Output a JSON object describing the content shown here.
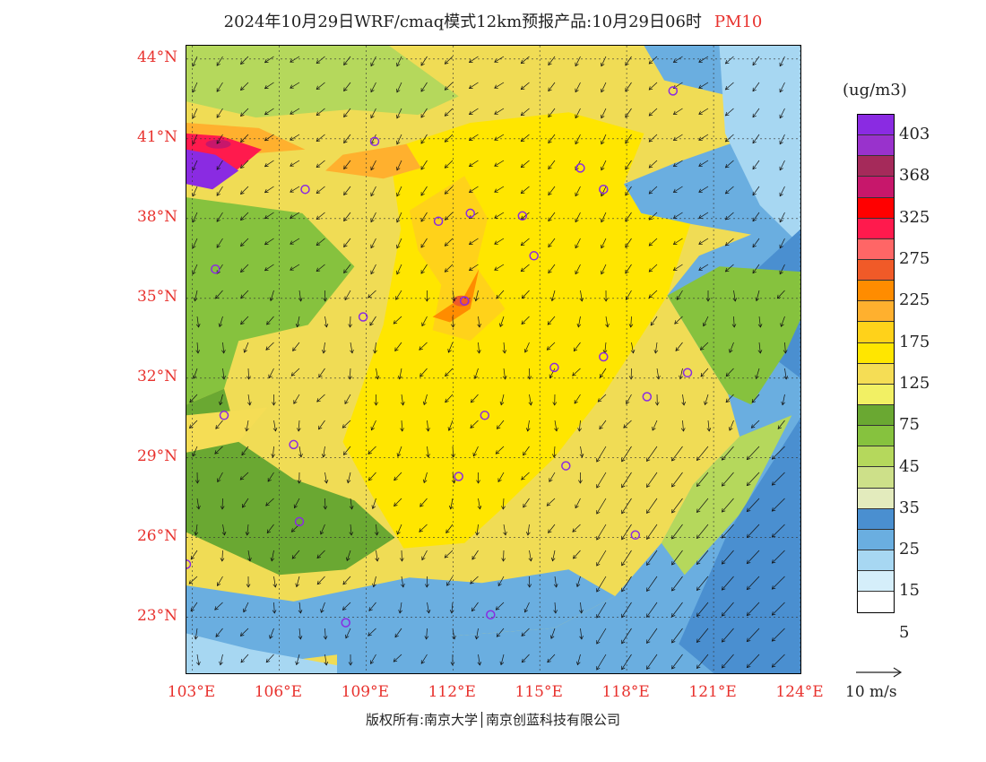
{
  "header": {
    "title": "2024年10月29日WRF/cmaq模式12km预报产品:10月29日06时",
    "pollutant": "PM10"
  },
  "map": {
    "lat_labels": [
      "44°N",
      "41°N",
      "38°N",
      "35°N",
      "32°N",
      "29°N",
      "26°N",
      "23°N"
    ],
    "lon_labels": [
      "103°E",
      "106°E",
      "109°E",
      "112°E",
      "115°E",
      "118°E",
      "121°E",
      "124°E"
    ],
    "lat_values": [
      44,
      41,
      38,
      35,
      32,
      29,
      26,
      23
    ],
    "lon_values": [
      103,
      106,
      109,
      112,
      115,
      118,
      121,
      124
    ],
    "lat_range": [
      20.9,
      44.5
    ],
    "lon_range": [
      102.8,
      124
    ],
    "cities": [
      {
        "lon": 109.3,
        "lat": 40.9
      },
      {
        "lon": 106.9,
        "lat": 39.1
      },
      {
        "lon": 111.5,
        "lat": 37.9
      },
      {
        "lon": 112.6,
        "lat": 38.2
      },
      {
        "lon": 114.4,
        "lat": 38.1
      },
      {
        "lon": 116.4,
        "lat": 39.9
      },
      {
        "lon": 117.2,
        "lat": 39.1
      },
      {
        "lon": 119.6,
        "lat": 42.8
      },
      {
        "lon": 103.8,
        "lat": 36.1
      },
      {
        "lon": 108.9,
        "lat": 34.3
      },
      {
        "lon": 112.4,
        "lat": 34.9
      },
      {
        "lon": 114.8,
        "lat": 36.6
      },
      {
        "lon": 117.2,
        "lat": 32.8
      },
      {
        "lon": 115.5,
        "lat": 32.4
      },
      {
        "lon": 118.7,
        "lat": 31.3
      },
      {
        "lon": 120.1,
        "lat": 32.2
      },
      {
        "lon": 104.1,
        "lat": 30.6
      },
      {
        "lon": 106.5,
        "lat": 29.5
      },
      {
        "lon": 113.1,
        "lat": 30.6
      },
      {
        "lon": 112.2,
        "lat": 28.3
      },
      {
        "lon": 115.9,
        "lat": 28.7
      },
      {
        "lon": 106.7,
        "lat": 26.6
      },
      {
        "lon": 118.3,
        "lat": 26.1
      },
      {
        "lon": 102.8,
        "lat": 25.0
      },
      {
        "lon": 108.3,
        "lat": 22.8
      },
      {
        "lon": 113.3,
        "lat": 23.1
      }
    ]
  },
  "legend": {
    "units": "(ug/m3)",
    "colors": [
      "#8a2be2",
      "#9932cc",
      "#a52a5a",
      "#c7176b",
      "#ff0000",
      "#ff1a4d",
      "#ff6666",
      "#f05a28",
      "#ff8c00",
      "#ffb02e",
      "#ffd21a",
      "#ffe600",
      "#f5dd55",
      "#f2f064",
      "#6aa832",
      "#86c23e",
      "#b5d85c",
      "#cde089",
      "#e3ebbd",
      "#4a8fd0",
      "#6aaee0",
      "#a7d7f2",
      "#d5eefa",
      "#ffffff"
    ],
    "labels": [
      "403",
      "368",
      "325",
      "275",
      "225",
      "175",
      "125",
      "75",
      "45",
      "35",
      "25",
      "15",
      "5"
    ]
  },
  "wind_reference": {
    "label": "10 m/s"
  },
  "footer": {
    "copyright": "版权所有:南京大学│南京创蓝科技有限公司"
  }
}
